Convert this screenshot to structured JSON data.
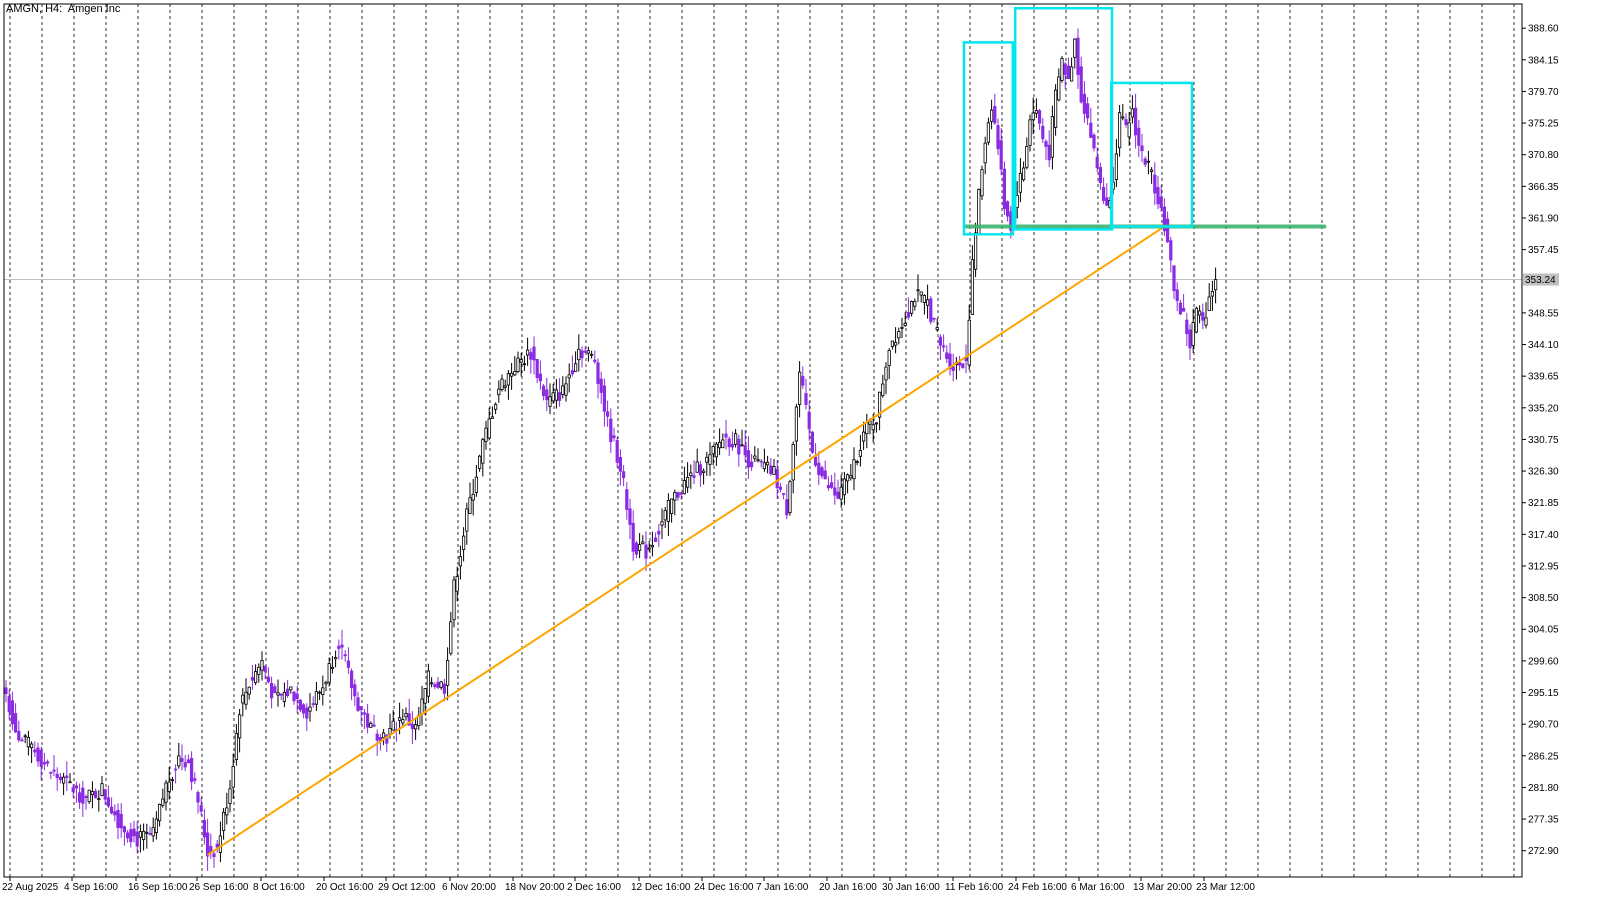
{
  "header": {
    "symbol": "AMGN, H4:",
    "name": "Amgen Inc"
  },
  "colors": {
    "bull_candle": "#000000",
    "bear_candle": "#8a2be2",
    "trendline": "#ffa500",
    "support": "#3cb371",
    "box": "#00e5ee",
    "grid": "#000000",
    "price_line": "#c0c0c0"
  },
  "chart_data": {
    "type": "candlestick",
    "symbol": "AMGN",
    "timeframe": "H4",
    "title": "Amgen Inc",
    "grid": true,
    "y_ticks": [
      "388.60",
      "384.15",
      "379.70",
      "375.25",
      "370.80",
      "366.35",
      "361.90",
      "357.45",
      "353.24",
      "348.55",
      "344.10",
      "339.65",
      "335.20",
      "330.75",
      "326.30",
      "321.85",
      "317.40",
      "312.95",
      "308.50",
      "304.05",
      "299.60",
      "295.15",
      "290.70",
      "286.25",
      "281.80",
      "277.35",
      "272.90"
    ],
    "current_price": "353.24",
    "x_ticks": [
      "22 Aug 2025",
      "4 Sep 16:00",
      "16 Sep 16:00",
      "26 Sep 16:00",
      "8 Oct 16:00",
      "20 Oct 16:00",
      "29 Oct 12:00",
      "6 Nov 20:00",
      "18 Nov 20:00",
      "2 Dec 16:00",
      "12 Dec 16:00",
      "24 Dec 16:00",
      "7 Jan 16:00",
      "20 Jan 16:00",
      "30 Jan 16:00",
      "11 Feb 16:00",
      "24 Feb 16:00",
      "6 Mar 16:00",
      "13 Mar 20:00",
      "23 Mar 12:00"
    ],
    "ylim": [
      269.2,
      392.0
    ],
    "close_anchors": [
      [
        0,
        295.0
      ],
      [
        4,
        288.5
      ],
      [
        8,
        287.5
      ],
      [
        14,
        284.0
      ],
      [
        20,
        282.0
      ],
      [
        25,
        280.2
      ],
      [
        30,
        281.5
      ],
      [
        36,
        276.5
      ],
      [
        41,
        274.5
      ],
      [
        46,
        275.0
      ],
      [
        50,
        282.0
      ],
      [
        54,
        286.0
      ],
      [
        57,
        285.5
      ],
      [
        60,
        280.0
      ],
      [
        63,
        272.8
      ],
      [
        66,
        273.2
      ],
      [
        70,
        282.0
      ],
      [
        73,
        293.0
      ],
      [
        76,
        296.5
      ],
      [
        80,
        299.5
      ],
      [
        84,
        294.0
      ],
      [
        89,
        295.5
      ],
      [
        94,
        292.5
      ],
      [
        99,
        296.0
      ],
      [
        104,
        302.5
      ],
      [
        109,
        294.5
      ],
      [
        114,
        290.0
      ],
      [
        119,
        289.0
      ],
      [
        124,
        292.0
      ],
      [
        128,
        290.0
      ],
      [
        132,
        297.0
      ],
      [
        137,
        296.0
      ],
      [
        140,
        310.0
      ],
      [
        144,
        320.0
      ],
      [
        149,
        330.0
      ],
      [
        154,
        338.0
      ],
      [
        159,
        341.0
      ],
      [
        164,
        343.0
      ],
      [
        169,
        336.0
      ],
      [
        174,
        337.5
      ],
      [
        179,
        343.5
      ],
      [
        184,
        342.0
      ],
      [
        188,
        333.0
      ],
      [
        192,
        327.0
      ],
      [
        196,
        316.0
      ],
      [
        200,
        315.0
      ],
      [
        204,
        318.0
      ],
      [
        208,
        322.0
      ],
      [
        212,
        324.5
      ],
      [
        216,
        326.5
      ],
      [
        220,
        328.0
      ],
      [
        224,
        331.0
      ],
      [
        228,
        330.5
      ],
      [
        232,
        328.0
      ],
      [
        236,
        327.0
      ],
      [
        240,
        326.0
      ],
      [
        244,
        321.0
      ],
      [
        248,
        340.0
      ],
      [
        252,
        329.0
      ],
      [
        256,
        324.5
      ],
      [
        260,
        322.5
      ],
      [
        264,
        326.0
      ],
      [
        268,
        331.5
      ],
      [
        272,
        334.0
      ],
      [
        276,
        344.0
      ],
      [
        280,
        347.0
      ],
      [
        284,
        351.0
      ],
      [
        288,
        350.0
      ],
      [
        292,
        344.0
      ],
      [
        296,
        341.0
      ],
      [
        300,
        342.0
      ],
      [
        302,
        355.0
      ],
      [
        304,
        365.0
      ],
      [
        306,
        373.0
      ],
      [
        308,
        378.0
      ],
      [
        310,
        372.0
      ],
      [
        312,
        364.0
      ],
      [
        314,
        361.0
      ],
      [
        316,
        366.0
      ],
      [
        318,
        369.0
      ],
      [
        320,
        376.0
      ],
      [
        322,
        377.0
      ],
      [
        324,
        373.0
      ],
      [
        326,
        371.0
      ],
      [
        328,
        379.0
      ],
      [
        330,
        384.0
      ],
      [
        332,
        381.0
      ],
      [
        334,
        387.0
      ],
      [
        336,
        379.0
      ],
      [
        338,
        376.0
      ],
      [
        340,
        371.0
      ],
      [
        342,
        367.0
      ],
      [
        344,
        363.0
      ],
      [
        346,
        368.0
      ],
      [
        348,
        376.0
      ],
      [
        350,
        374.0
      ],
      [
        352,
        377.0
      ],
      [
        354,
        372.0
      ],
      [
        356,
        370.0
      ],
      [
        358,
        368.0
      ],
      [
        360,
        365.0
      ],
      [
        362,
        361.0
      ],
      [
        364,
        355.0
      ],
      [
        366,
        350.0
      ],
      [
        368,
        348.0
      ],
      [
        370,
        344.0
      ],
      [
        372,
        349.0
      ],
      [
        374,
        347.0
      ],
      [
        376,
        351.0
      ],
      [
        378,
        353.24
      ]
    ],
    "support_level": 360.7,
    "trendline": {
      "start": [
        63,
        272.3
      ],
      "end": [
        362,
        360.7
      ]
    },
    "boxes": [
      {
        "bars": [
          300,
          314
        ],
        "price": [
          359.6,
          386.6
        ]
      },
      {
        "bars": [
          316,
          345
        ],
        "price": [
          360.3,
          391.4
        ]
      },
      {
        "bars": [
          346,
          370
        ],
        "price": [
          360.7,
          380.9
        ]
      }
    ]
  }
}
